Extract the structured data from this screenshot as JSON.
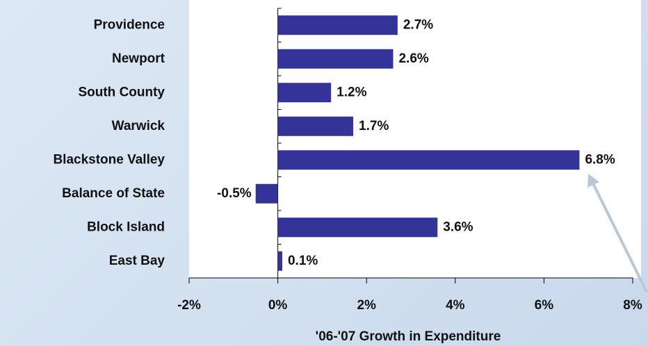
{
  "chart_data": {
    "type": "bar",
    "orientation": "horizontal",
    "categories": [
      "Providence",
      "Newport",
      "South County",
      "Warwick",
      "Blackstone Valley",
      "Balance of State",
      "Block Island",
      "East Bay"
    ],
    "values": [
      2.7,
      2.6,
      1.2,
      1.7,
      6.8,
      -0.5,
      3.6,
      0.1
    ],
    "value_labels": [
      "2.7%",
      "2.6%",
      "1.2%",
      "1.7%",
      "6.8%",
      "-0.5%",
      "3.6%",
      "0.1%"
    ],
    "color": "#333399",
    "x_label": "'06-'07 Growth in Expenditure",
    "xlim": [
      -2,
      8
    ],
    "xticks": [
      {
        "value": -2,
        "label": "-2%"
      },
      {
        "value": 0,
        "label": "0%"
      },
      {
        "value": 2,
        "label": "2%"
      },
      {
        "value": 4,
        "label": "4%"
      },
      {
        "value": 6,
        "label": "6%"
      },
      {
        "value": 8,
        "label": "8%"
      }
    ]
  }
}
